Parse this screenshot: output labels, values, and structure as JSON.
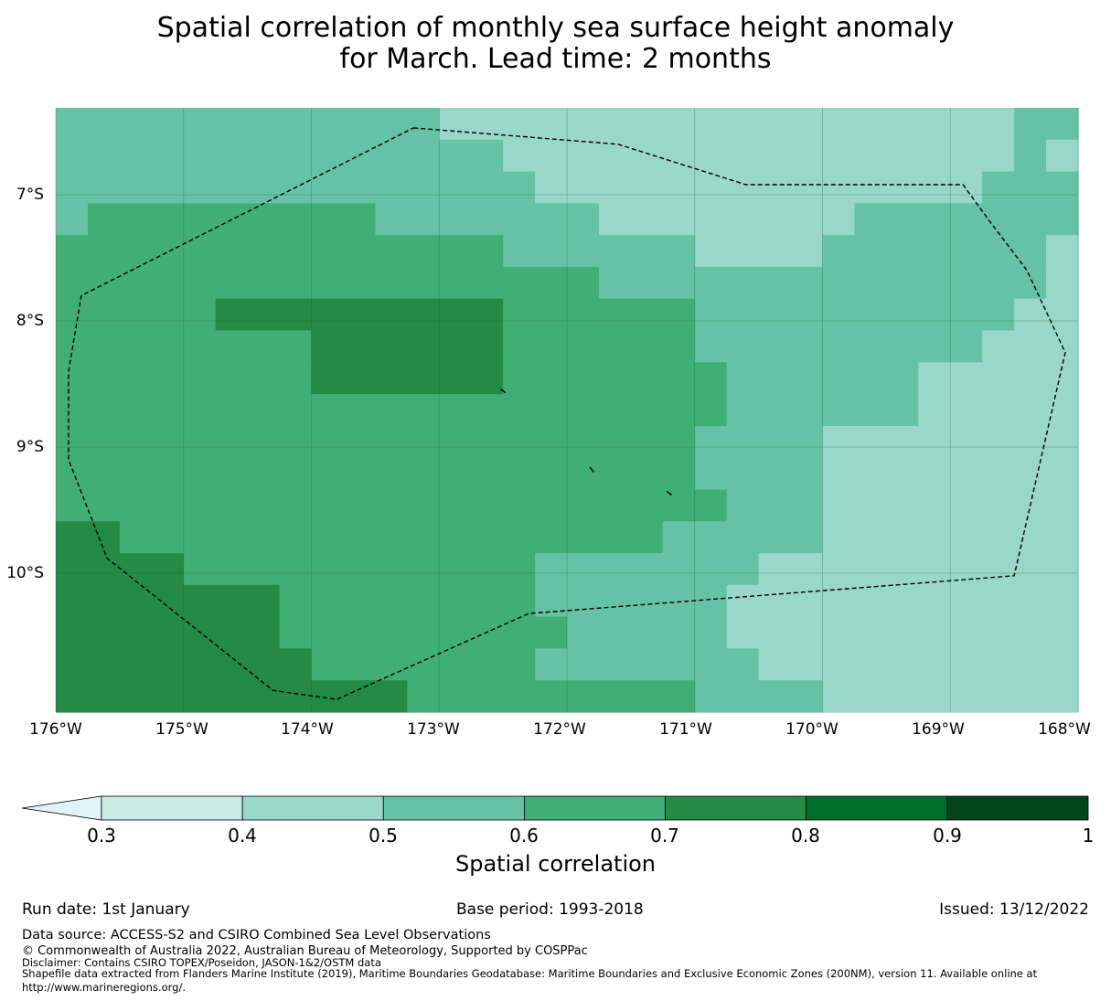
{
  "title": {
    "line1": "Spatial correlation of monthly sea surface height anomaly",
    "line2": "for March. Lead time: 2 months"
  },
  "map": {
    "lat_labels": [
      "7°S",
      "8°S",
      "9°S",
      "10°S"
    ],
    "lon_labels": [
      "176°W",
      "175°W",
      "174°W",
      "173°W",
      "172°W",
      "171°W",
      "170°W",
      "169°W",
      "168°W"
    ],
    "lon_range": [
      -176,
      -168
    ],
    "lat_range_deg_S": [
      6.3,
      11.1
    ],
    "cell_size_deg": 0.25,
    "grid_columns": 32,
    "grid_rows": 19,
    "correlation_class_rows": [
      "22222222222211111111111111111122",
      "22222222222222111111111111111121",
      "22222222222222211111111111111222",
      "23333333332222222111111112222222",
      "33333333333333222222111122222221",
      "33333333333333333222222222222221",
      "33333444444444333333222222222211",
      "33333333444444333333222222222111",
      "33333333444444333333322222211111",
      "33333333333333333333322222211111",
      "33333333333333333333222211111111",
      "33333333333333333333222211111111",
      "33333333333333333333322211111111",
      "44333333333333333332222211111111",
      "44443333333333322222221111111111",
      "44444443333333322222211111111111",
      "44444443333333332222211111111111",
      "44444444333333322222221111111111",
      "44444444444333333333222211111111"
    ],
    "eez_boundary_lonlat": [
      [
        -173.2,
        -6.47
      ],
      [
        -171.6,
        -6.6
      ],
      [
        -170.6,
        -6.92
      ],
      [
        -168.9,
        -6.92
      ],
      [
        -168.7,
        -7.2
      ],
      [
        -168.4,
        -7.6
      ],
      [
        -168.1,
        -8.25
      ],
      [
        -168.5,
        -10.02
      ],
      [
        -172.3,
        -10.32
      ],
      [
        -173.8,
        -11.0
      ],
      [
        -174.3,
        -10.93
      ],
      [
        -175.6,
        -9.88
      ],
      [
        -175.9,
        -9.1
      ],
      [
        -175.9,
        -8.4
      ],
      [
        -175.8,
        -7.8
      ],
      [
        -173.2,
        -6.47
      ]
    ],
    "islands_lonlat": [
      [
        [
          -172.52,
          -8.54
        ],
        [
          -172.48,
          -8.57
        ]
      ],
      [
        [
          -171.82,
          -9.16
        ],
        [
          -171.79,
          -9.2
        ]
      ],
      [
        [
          -171.22,
          -9.35
        ],
        [
          -171.18,
          -9.38
        ]
      ]
    ]
  },
  "colorbar": {
    "label": "Spatial correlation",
    "ticks": [
      "0.3",
      "0.4",
      "0.5",
      "0.6",
      "0.7",
      "0.8",
      "0.9",
      "1"
    ],
    "colors": [
      "#e0f3f8",
      "#ccece6",
      "#99d8c9",
      "#66c2a4",
      "#41ae76",
      "#238b45",
      "#006d2c",
      "#00441b"
    ]
  },
  "footer": {
    "run_date": "Run date: 1st January",
    "base_period": "Base period: 1993-2018",
    "issued": "Issued: 13/12/2022",
    "data_source": "Data source: ACCESS-S2 and CSIRO Combined Sea Level Observations",
    "copyright": "© Commonwealth of Australia 2022, Australian Bureau of Meteorology, Supported by COSPPac",
    "disclaimer": "Disclaimer: Contains CSIRO TOPEX/Poseidon, JASON-1&2/OSTM data",
    "shapefile": "Shapefile data extracted from Flanders Marine Institute (2019), Maritime Boundaries Geodatabase: Maritime Boundaries and Exclusive Economic Zones (200NM), version 11. Available online at",
    "url": "http://www.marineregions.org/."
  }
}
